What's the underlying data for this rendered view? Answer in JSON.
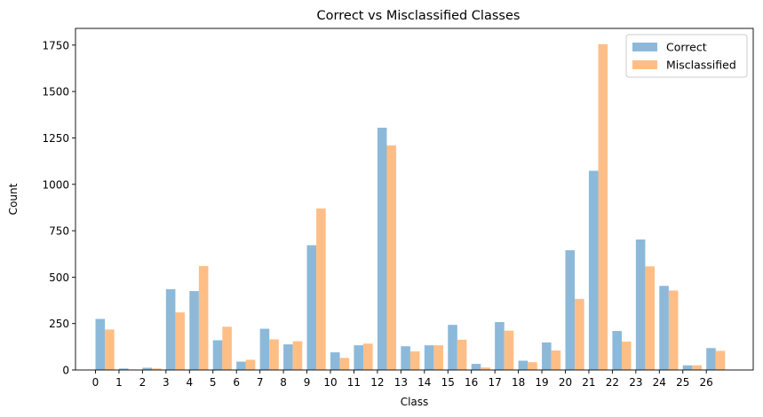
{
  "chart_data": {
    "type": "bar",
    "title": "Correct vs Misclassified Classes",
    "xlabel": "Class",
    "ylabel": "Count",
    "categories": [
      "0",
      "1",
      "2",
      "3",
      "4",
      "5",
      "6",
      "7",
      "8",
      "9",
      "10",
      "11",
      "12",
      "13",
      "14",
      "15",
      "16",
      "17",
      "18",
      "19",
      "20",
      "21",
      "22",
      "23",
      "24",
      "25",
      "26"
    ],
    "ylim": [
      0,
      1840
    ],
    "yticks": [
      0,
      250,
      500,
      750,
      1000,
      1250,
      1500,
      1750
    ],
    "legend_position": "top-right",
    "series": [
      {
        "name": "Correct",
        "color": "#8cb9d9",
        "values": [
          275,
          8,
          12,
          435,
          425,
          160,
          45,
          222,
          138,
          672,
          95,
          133,
          1305,
          128,
          133,
          243,
          33,
          258,
          50,
          148,
          645,
          1073,
          210,
          703,
          453,
          25,
          118
        ]
      },
      {
        "name": "Misclassified",
        "color": "#ffbe86",
        "values": [
          218,
          2,
          8,
          310,
          560,
          233,
          55,
          165,
          155,
          870,
          65,
          142,
          1210,
          100,
          133,
          163,
          13,
          212,
          42,
          105,
          383,
          1755,
          153,
          558,
          428,
          25,
          103
        ]
      }
    ]
  }
}
